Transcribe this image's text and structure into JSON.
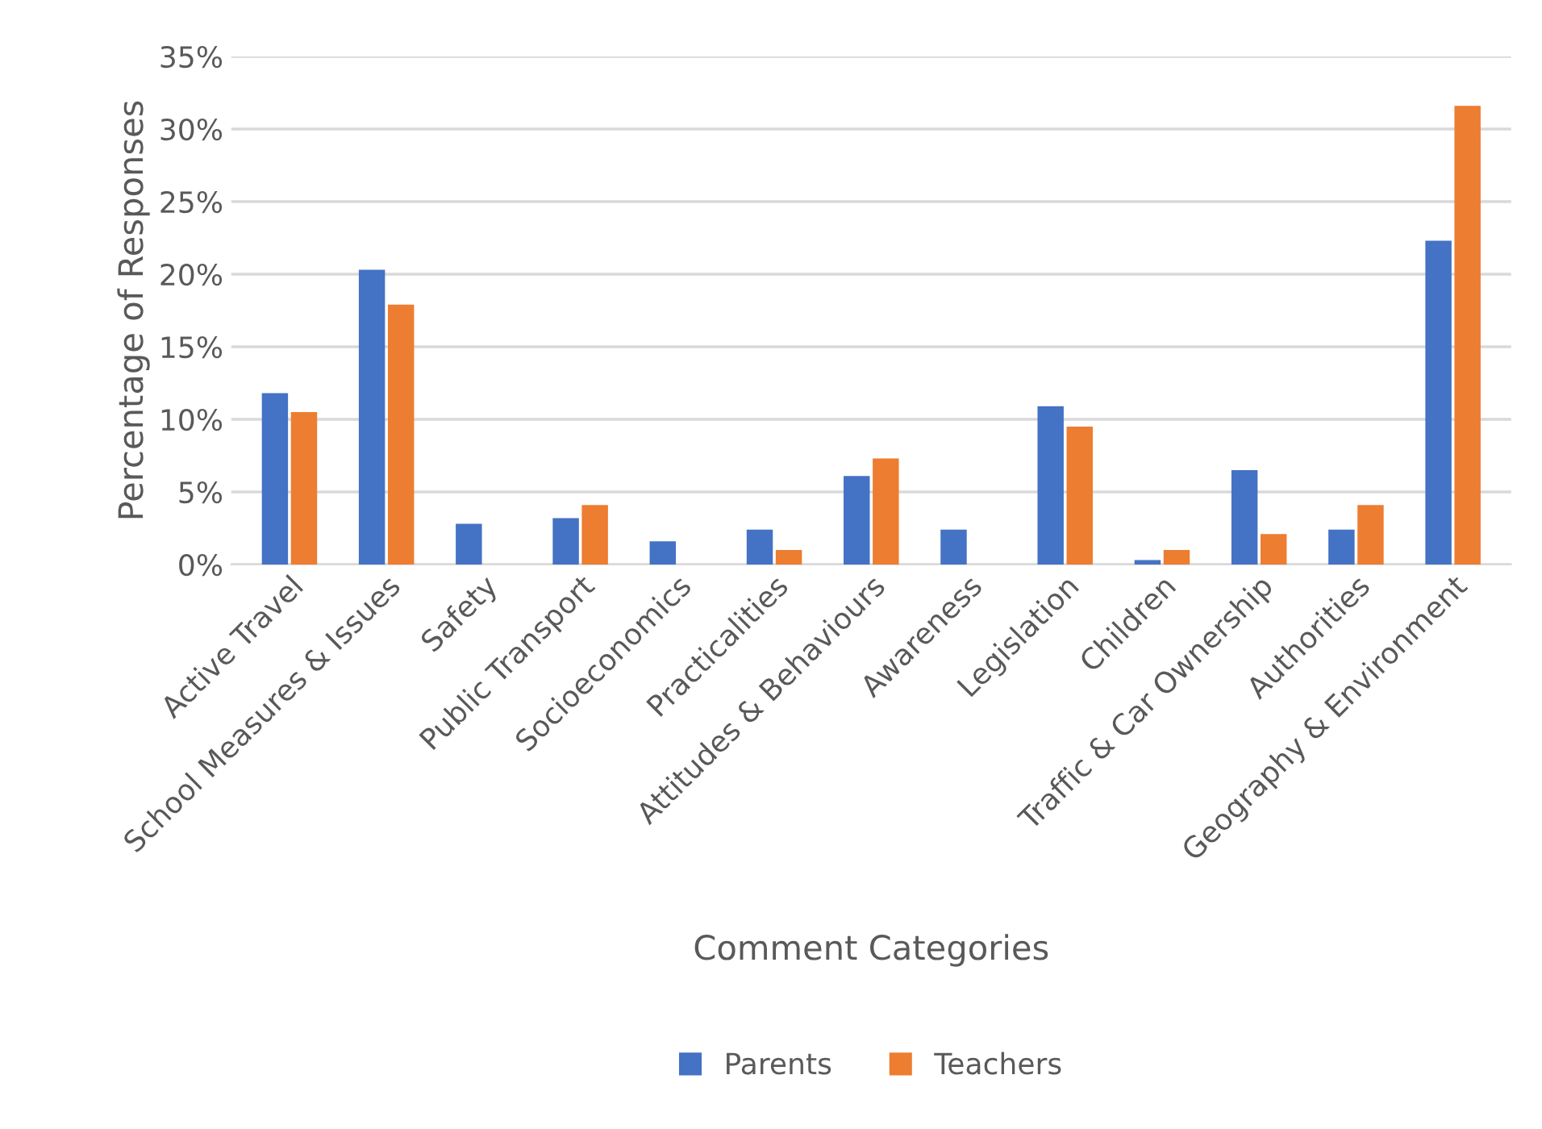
{
  "chart_data": {
    "type": "bar",
    "xlabel": "Comment Categories",
    "ylabel": "Percentage of Responses",
    "categories": [
      "Active Travel",
      "School Measures & Issues",
      "Safety",
      "Public Transport",
      "Socioeconomics",
      "Practicalities",
      "Attitudes & Behaviours",
      "Awareness",
      "Legislation",
      "Children",
      "Traffic & Car Ownership",
      "Authorities",
      "Geography & Environment"
    ],
    "series": [
      {
        "name": "Parents",
        "color": "#4472c4",
        "values": [
          11.8,
          20.3,
          2.8,
          3.2,
          1.6,
          2.4,
          6.1,
          2.4,
          10.9,
          0.3,
          6.5,
          2.4,
          22.3
        ]
      },
      {
        "name": "Teachers",
        "color": "#ed7d31",
        "values": [
          10.5,
          17.9,
          0,
          4.1,
          0,
          1.0,
          7.3,
          0,
          9.5,
          1.0,
          2.1,
          4.1,
          31.6
        ]
      }
    ],
    "ylim": [
      0,
      35
    ],
    "yticks": [
      {
        "value": 0,
        "label": "0%"
      },
      {
        "value": 5,
        "label": "5%"
      },
      {
        "value": 10,
        "label": "10%"
      },
      {
        "value": 15,
        "label": "15%"
      },
      {
        "value": 20,
        "label": "20%"
      },
      {
        "value": 25,
        "label": "25%"
      },
      {
        "value": 30,
        "label": "30%"
      },
      {
        "value": 35,
        "label": "35%"
      }
    ],
    "grid": "y",
    "legend": "bottom"
  }
}
